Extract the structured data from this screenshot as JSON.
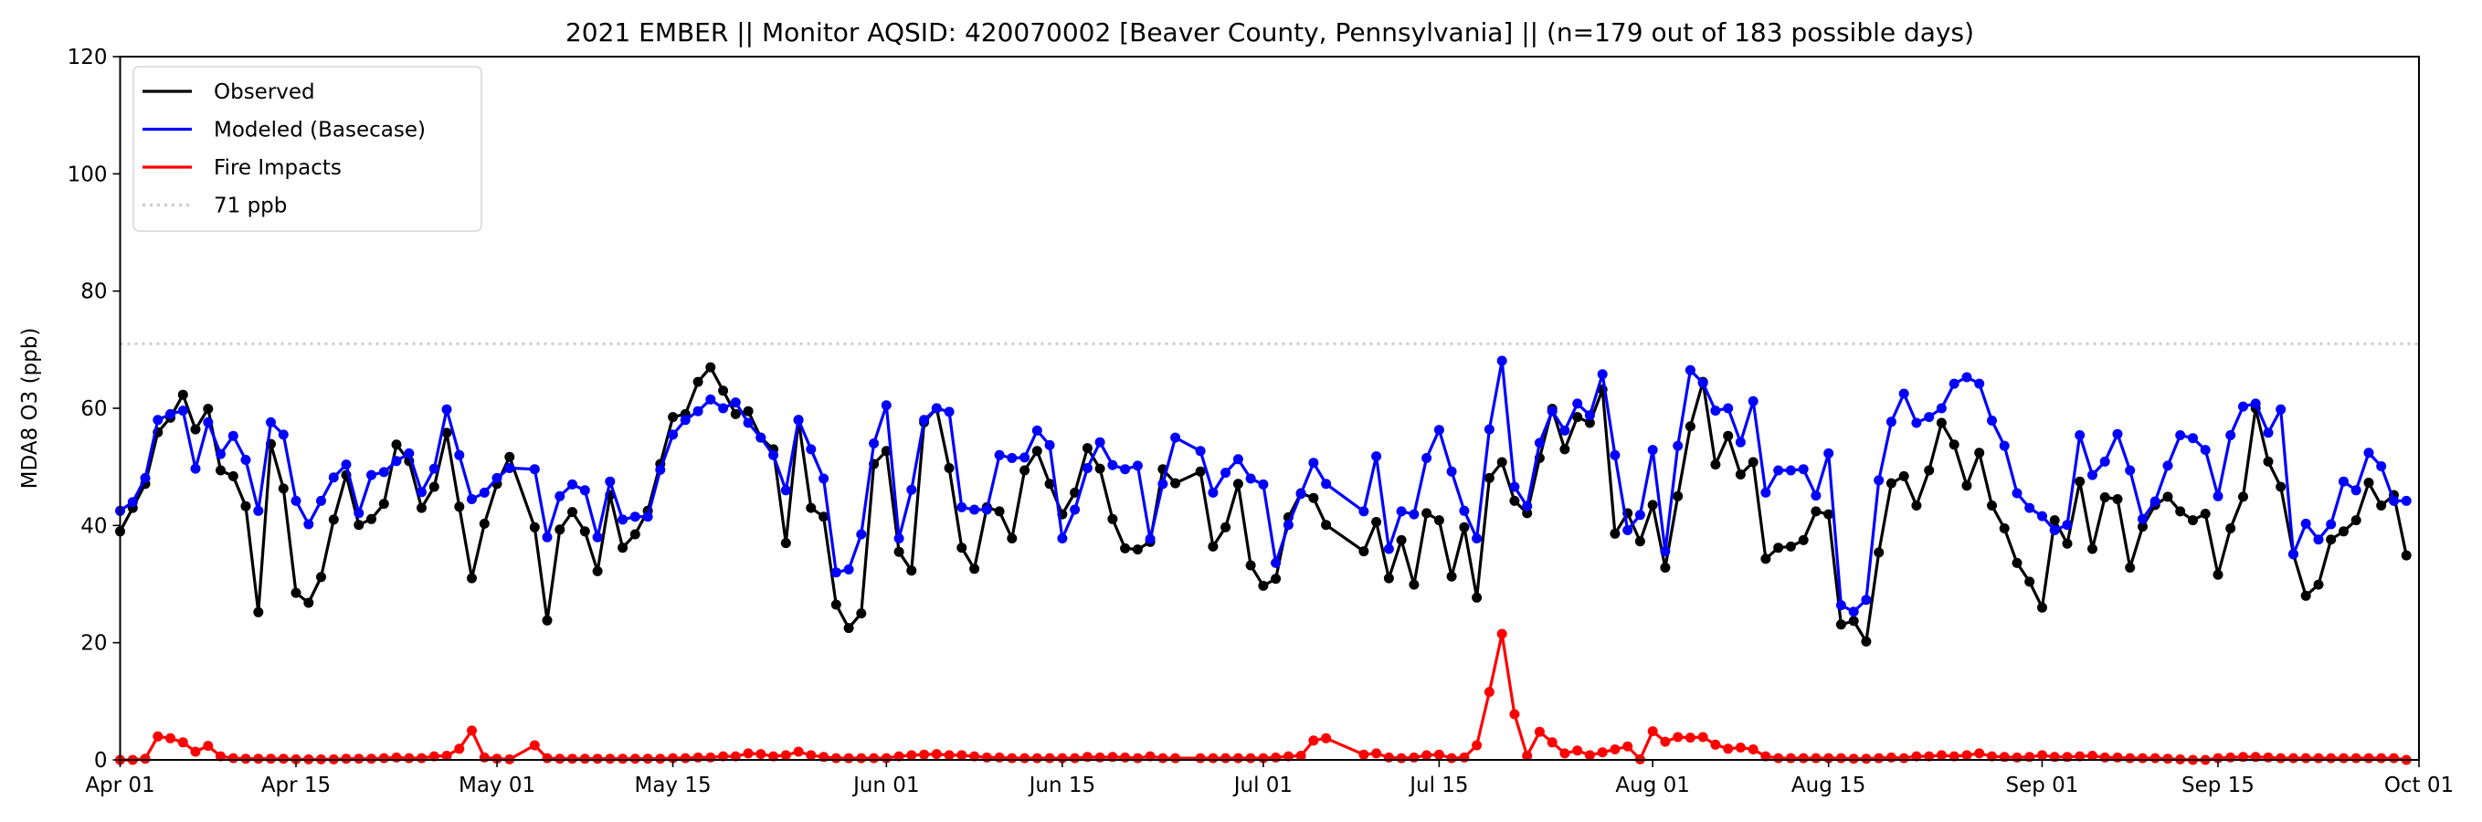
{
  "chart_data": {
    "type": "line",
    "title": "2021 EMBER || Monitor AQSID: 420070002 [Beaver County, Pennsylvania] || (n=179 out of 183 possible days)",
    "xlabel": "",
    "ylabel": "MDA8 O3 (ppb)",
    "ylim": [
      0,
      120
    ],
    "yticks": [
      "0",
      "20",
      "40",
      "60",
      "80",
      "100",
      "120"
    ],
    "x_start": "2021-04-01",
    "x_days": 183,
    "xticks": [
      {
        "label": "Apr 01",
        "day": 0
      },
      {
        "label": "Apr 15",
        "day": 14
      },
      {
        "label": "May 01",
        "day": 30
      },
      {
        "label": "May 15",
        "day": 44
      },
      {
        "label": "Jun 01",
        "day": 61
      },
      {
        "label": "Jun 15",
        "day": 75
      },
      {
        "label": "Jul 01",
        "day": 91
      },
      {
        "label": "Jul 15",
        "day": 105
      },
      {
        "label": "Aug 01",
        "day": 122
      },
      {
        "label": "Aug 15",
        "day": 136
      },
      {
        "label": "Sep 01",
        "day": 153
      },
      {
        "label": "Sep 15",
        "day": 167
      },
      {
        "label": "Oct 01",
        "day": 183
      }
    ],
    "grid": false,
    "legend_position": "top-left",
    "threshold": {
      "label": "71 ppb",
      "value": 71,
      "color": "#cccccc"
    },
    "series": [
      {
        "name": "Observed",
        "color": "#000000",
        "values": [
          39.0,
          43.0,
          47.1,
          55.9,
          58.4,
          62.3,
          56.4,
          59.9,
          49.4,
          48.4,
          43.3,
          25.2,
          53.9,
          46.3,
          28.5,
          26.8,
          31.2,
          41.0,
          48.6,
          40.1,
          41.1,
          43.7,
          53.8,
          51.0,
          43.0,
          46.6,
          55.8,
          43.2,
          31.0,
          40.3,
          47.1,
          51.7,
          null,
          39.7,
          23.8,
          39.3,
          42.3,
          39.0,
          32.2,
          45.2,
          36.2,
          38.5,
          42.5,
          50.5,
          58.5,
          59.0,
          64.5,
          67.0,
          63.0,
          59.0,
          59.5,
          55.0,
          53.0,
          37.0,
          58.0,
          43.0,
          41.5,
          26.5,
          22.5,
          25.0,
          50.5,
          52.7,
          35.5,
          32.3,
          57.6,
          60.0,
          49.8,
          36.2,
          32.6,
          43.1,
          42.4,
          37.8,
          49.4,
          52.7,
          47.1,
          41.9,
          45.6,
          53.2,
          49.7,
          41.1,
          36.1,
          35.9,
          37.2,
          49.6,
          47.2,
          null,
          49.2,
          36.4,
          39.7,
          47.1,
          33.2,
          29.7,
          30.9,
          41.4,
          45.5,
          44.7,
          40.1,
          null,
          null,
          35.6,
          40.6,
          31.0,
          37.5,
          29.9,
          42.1,
          40.9,
          31.3,
          39.7,
          27.7,
          48.1,
          50.8,
          44.2,
          42.1,
          51.5,
          59.9,
          53.0,
          58.5,
          57.5,
          63.2,
          38.6,
          42.1,
          37.3,
          43.5,
          32.8,
          45.0,
          56.9,
          64.5,
          50.4,
          55.3,
          48.7,
          50.8,
          34.3,
          36.2,
          36.4,
          37.5,
          42.4,
          41.9,
          23.1,
          23.7,
          20.2,
          35.4,
          47.2,
          48.4,
          43.4,
          49.4,
          57.5,
          53.8,
          46.8,
          52.4,
          43.4,
          39.5,
          33.6,
          30.4,
          26.0,
          40.9,
          36.9,
          47.5,
          36.0,
          44.8,
          44.5,
          32.8,
          39.8,
          43.5,
          44.9,
          42.4,
          40.9,
          42.0,
          31.6,
          39.5,
          44.9,
          60.0,
          50.9,
          46.6,
          35.1,
          28.0,
          29.9,
          37.6,
          39.0,
          40.9,
          47.3,
          43.4,
          45.2,
          34.9
        ]
      },
      {
        "name": "Modeled (Basecase)",
        "color": "#0000ff",
        "values": [
          42.5,
          44.0,
          48.1,
          58.0,
          59.0,
          59.6,
          49.7,
          57.6,
          52.2,
          55.3,
          51.2,
          42.5,
          57.6,
          55.5,
          44.2,
          40.2,
          44.2,
          48.2,
          50.4,
          42.1,
          48.6,
          49.1,
          51.0,
          52.3,
          45.7,
          49.7,
          59.8,
          52.0,
          44.5,
          45.6,
          48.1,
          49.8,
          null,
          49.6,
          38.0,
          45.0,
          47.0,
          46.0,
          38.0,
          47.5,
          41.0,
          41.5,
          41.5,
          49.5,
          55.5,
          58.0,
          59.5,
          61.5,
          60.0,
          61.0,
          57.5,
          55.0,
          52.0,
          46.0,
          58.0,
          53.0,
          48.0,
          32.0,
          32.5,
          38.5,
          54.0,
          60.5,
          37.8,
          46.1,
          58.0,
          60.0,
          59.4,
          43.1,
          42.7,
          42.7,
          52.0,
          51.5,
          51.6,
          56.2,
          53.7,
          37.8,
          42.7,
          49.8,
          54.2,
          50.3,
          49.6,
          50.2,
          37.7,
          47.1,
          55.0,
          null,
          52.7,
          45.6,
          49.0,
          51.3,
          48.0,
          47.0,
          33.6,
          40.1,
          45.4,
          50.7,
          47.1,
          null,
          null,
          42.4,
          51.8,
          36.0,
          42.4,
          41.9,
          51.5,
          56.3,
          49.2,
          42.5,
          37.8,
          56.4,
          68.1,
          46.6,
          43.3,
          54.1,
          59.5,
          56.2,
          60.8,
          58.8,
          65.8,
          52.0,
          39.2,
          41.8,
          52.9,
          35.6,
          53.6,
          66.5,
          64.3,
          59.6,
          60.0,
          54.2,
          61.2,
          45.6,
          49.4,
          49.4,
          49.6,
          45.1,
          52.3,
          26.4,
          25.3,
          27.3,
          47.7,
          57.7,
          62.5,
          57.5,
          58.5,
          60.0,
          64.2,
          65.3,
          64.2,
          57.9,
          53.6,
          45.5,
          43.0,
          41.6,
          39.2,
          40.1,
          55.4,
          48.6,
          50.9,
          55.6,
          49.4,
          41.1,
          44.1,
          50.2,
          55.4,
          54.9,
          52.9,
          45.0,
          55.4,
          60.3,
          60.8,
          55.8,
          59.8,
          35.1,
          40.3,
          37.6,
          40.2,
          47.5,
          46.0,
          52.4,
          50.1,
          44.2,
          44.2
        ]
      },
      {
        "name": "Fire Impacts",
        "color": "#ff0000",
        "values": [
          0,
          0,
          0.2,
          4.0,
          3.7,
          3.0,
          1.4,
          2.4,
          0.6,
          0.3,
          0.2,
          0.2,
          0.2,
          0.2,
          0.1,
          0.1,
          0.1,
          0.1,
          0.2,
          0.2,
          0.2,
          0.3,
          0.4,
          0.3,
          0.3,
          0.6,
          0.7,
          1.9,
          5.0,
          0.4,
          0.2,
          0.1,
          null,
          2.5,
          0.3,
          0.2,
          0.2,
          0.2,
          0.2,
          0.2,
          0.2,
          0.2,
          0.2,
          0.2,
          0.3,
          0.3,
          0.4,
          0.4,
          0.6,
          0.6,
          1.1,
          1.0,
          0.6,
          0.8,
          1.4,
          0.8,
          0.5,
          0.3,
          0.3,
          0.3,
          0.3,
          0.3,
          0.6,
          0.8,
          0.9,
          1.0,
          0.8,
          0.8,
          0.6,
          0.4,
          0.4,
          0.3,
          0.3,
          0.3,
          0.3,
          0.3,
          0.3,
          0.5,
          0.4,
          0.5,
          0.4,
          0.3,
          0.6,
          0.3,
          0.3,
          null,
          0.3,
          0.3,
          0.3,
          0.3,
          0.3,
          0.3,
          0.4,
          0.6,
          0.7,
          3.3,
          3.7,
          null,
          null,
          0.9,
          1.1,
          0.4,
          0.3,
          0.4,
          0.8,
          0.9,
          0.3,
          0.4,
          2.5,
          11.6,
          21.5,
          7.8,
          0.7,
          4.8,
          3.0,
          1.1,
          1.6,
          0.8,
          1.3,
          1.8,
          2.3,
          0.1,
          4.9,
          3.1,
          3.9,
          3.8,
          3.9,
          2.6,
          1.9,
          2.1,
          1.8,
          0.6,
          0.3,
          0.3,
          0.3,
          0.3,
          0.3,
          0.3,
          0.2,
          0.2,
          0.3,
          0.4,
          0.3,
          0.6,
          0.6,
          0.8,
          0.6,
          0.8,
          1.1,
          0.6,
          0.5,
          0.4,
          0.5,
          0.8,
          0.5,
          0.5,
          0.6,
          0.7,
          0.4,
          0.4,
          0.3,
          0.3,
          0.3,
          0.2,
          0.1,
          0,
          0,
          0.3,
          0.4,
          0.5,
          0.5,
          0.4,
          0.3,
          0.3,
          0.3,
          0.3,
          0.3,
          0.3,
          0.3,
          0.3,
          0.3,
          0.3,
          0
        ]
      }
    ]
  }
}
